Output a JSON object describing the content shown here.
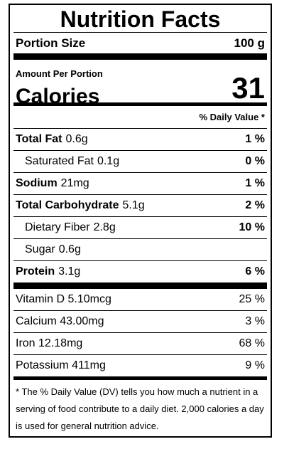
{
  "label": {
    "title": "Nutrition Facts",
    "portion": {
      "label": "Portion Size",
      "value": "100 g"
    },
    "amount_per_portion": "Amount Per Portion",
    "calories": {
      "label": "Calories",
      "value": "31"
    },
    "dv_header": "% Daily Value *",
    "nutrients": [
      {
        "name": "Total Fat",
        "amount": "0.6g",
        "dv": "1 %"
      },
      {
        "name": "Saturated Fat",
        "amount": "0.1g",
        "dv": "0 %"
      },
      {
        "name": "Sodium",
        "amount": "21mg",
        "dv": "1 %"
      },
      {
        "name": "Total Carbohydrate",
        "amount": "5.1g",
        "dv": "2 %"
      },
      {
        "name": "Dietary Fiber",
        "amount": "2.8g",
        "dv": "10 %"
      },
      {
        "name": "Sugar",
        "amount": "0.6g",
        "dv": ""
      },
      {
        "name": "Protein",
        "amount": "3.1g",
        "dv": "6 %"
      }
    ],
    "vitamins": [
      {
        "name": "Vitamin D",
        "amount": "5.10mcg",
        "dv": "25 %"
      },
      {
        "name": "Calcium",
        "amount": "43.00mg",
        "dv": "3 %"
      },
      {
        "name": "Iron",
        "amount": "12.18mg",
        "dv": "68 %"
      },
      {
        "name": "Potassium",
        "amount": "411mg",
        "dv": "9 %"
      }
    ],
    "footnote": "* The % Daily Value (DV) tells you how much a nutrient in a serving of food contribute to a daily diet. 2,000 calories a day is used for general nutrition advice."
  }
}
